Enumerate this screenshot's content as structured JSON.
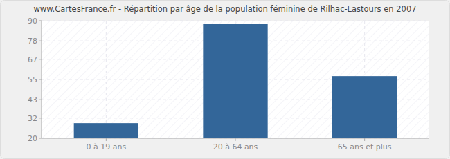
{
  "chart_data": {
    "type": "bar",
    "title": "www.CartesFrance.fr - Répartition par âge de la population féminine de Rilhac-Lastours en 2007",
    "categories": [
      "0 à 19 ans",
      "20 à 64 ans",
      "65 ans et plus"
    ],
    "values": [
      29,
      88,
      57
    ],
    "color": "#336699",
    "ylim": [
      20,
      90
    ],
    "yticks": [
      20,
      32,
      43,
      55,
      67,
      78,
      90
    ],
    "grid": true
  }
}
